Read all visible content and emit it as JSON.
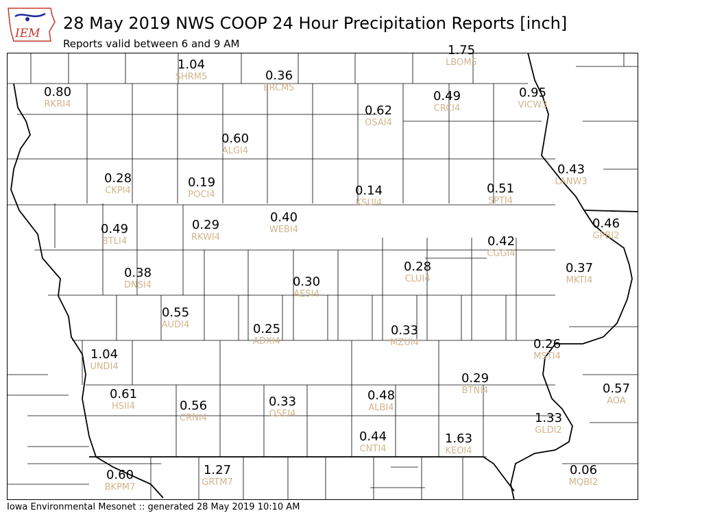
{
  "header": {
    "logo_text": "IEM",
    "title": "28 May 2019 NWS COOP 24 Hour Precipitation Reports [inch]",
    "subtitle": "Reports valid between 6 and 9 AM"
  },
  "footer": {
    "text": "Iowa Environmental Mesonet :: generated 28 May 2019 10:10 AM"
  },
  "colors": {
    "value_text": "#000000",
    "station_id_text": "#d2b48c",
    "boundary": "#000000",
    "logo_accent": "#1f2a9c",
    "logo_text": "#c0392b"
  },
  "stations": [
    {
      "id": "LBOM5",
      "value": "1.75"
    },
    {
      "id": "SHRM5",
      "value": "1.04"
    },
    {
      "id": "ERCM5",
      "value": "0.36"
    },
    {
      "id": "RKRI4",
      "value": "0.80"
    },
    {
      "id": "CRCI4",
      "value": "0.49"
    },
    {
      "id": "VICW3",
      "value": "0.95"
    },
    {
      "id": "OSAI4",
      "value": "0.62"
    },
    {
      "id": "ALGI4",
      "value": "0.60"
    },
    {
      "id": "CKPI4",
      "value": "0.28"
    },
    {
      "id": "POCI4",
      "value": "0.19"
    },
    {
      "id": "KSUI4",
      "value": "0.14"
    },
    {
      "id": "LANW3",
      "value": "0.43"
    },
    {
      "id": "SPTI4",
      "value": "0.51"
    },
    {
      "id": "BTLI4",
      "value": "0.49"
    },
    {
      "id": "RKWI4",
      "value": "0.29"
    },
    {
      "id": "WEBI4",
      "value": "0.40"
    },
    {
      "id": "GPBI2",
      "value": "0.46"
    },
    {
      "id": "CGGI4",
      "value": "0.42"
    },
    {
      "id": "CLUI4",
      "value": "0.28"
    },
    {
      "id": "DNSI4",
      "value": "0.38"
    },
    {
      "id": "AESI4",
      "value": "0.30"
    },
    {
      "id": "MKTI4",
      "value": "0.37"
    },
    {
      "id": "AUDI4",
      "value": "0.55"
    },
    {
      "id": "ADXI4",
      "value": "0.25"
    },
    {
      "id": "MZUI4",
      "value": "0.33"
    },
    {
      "id": "MSTI4",
      "value": "0.26"
    },
    {
      "id": "UNDI4",
      "value": "1.04"
    },
    {
      "id": "BTNI4",
      "value": "0.29"
    },
    {
      "id": "AOA",
      "value": "0.57"
    },
    {
      "id": "HSII4",
      "value": "0.61"
    },
    {
      "id": "CRNI4",
      "value": "0.56"
    },
    {
      "id": "OSEI4",
      "value": "0.33"
    },
    {
      "id": "ALBI4",
      "value": "0.48"
    },
    {
      "id": "GLDI2",
      "value": "1.33"
    },
    {
      "id": "CNTI4",
      "value": "0.44"
    },
    {
      "id": "KEOI4",
      "value": "1.63"
    },
    {
      "id": "BKPM7",
      "value": "0.60"
    },
    {
      "id": "GRTM7",
      "value": "1.27"
    },
    {
      "id": "MQBI2",
      "value": "0.06"
    }
  ]
}
